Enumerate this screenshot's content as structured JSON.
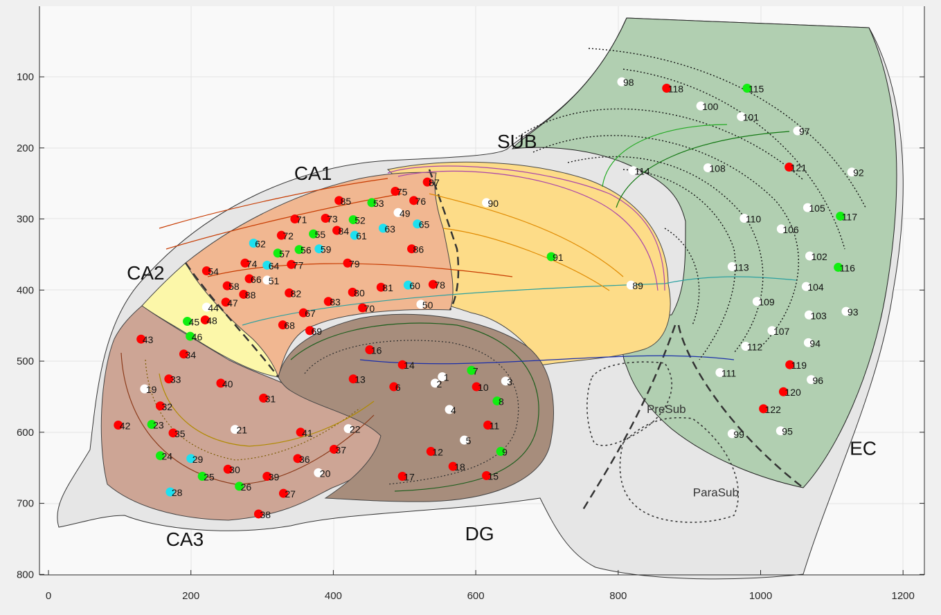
{
  "axes": {
    "x_ticks": [
      0,
      200,
      400,
      600,
      800,
      1000,
      1200
    ],
    "y_ticks": [
      100,
      200,
      300,
      400,
      500,
      600,
      700,
      800
    ],
    "x_range": [
      -12,
      1232
    ],
    "y_range": [
      10,
      810
    ]
  },
  "regions": [
    {
      "key": "ca1",
      "label": "CA1",
      "x": 345,
      "y": 245
    },
    {
      "key": "ca2",
      "label": "CA2",
      "x": 110,
      "y": 385
    },
    {
      "key": "ca3",
      "label": "CA3",
      "x": 165,
      "y": 760
    },
    {
      "key": "sub",
      "label": "SUB",
      "x": 630,
      "y": 200
    },
    {
      "key": "dg",
      "label": "DG",
      "x": 585,
      "y": 752
    },
    {
      "key": "ec",
      "label": "EC",
      "x": 1125,
      "y": 632
    },
    {
      "key": "presub",
      "label": "PreSub",
      "x": 840,
      "y": 573,
      "small": true
    },
    {
      "key": "parasub",
      "label": "ParaSub",
      "x": 905,
      "y": 690,
      "small": true
    }
  ],
  "colors": {
    "red": "#ff0000",
    "green": "#11ee11",
    "cyan": "#1ee0f0",
    "white": "#ffffff"
  },
  "points": [
    {
      "id": "1",
      "x": 553,
      "y": 522,
      "c": "white"
    },
    {
      "id": "2",
      "x": 543,
      "y": 531,
      "c": "white"
    },
    {
      "id": "3",
      "x": 642,
      "y": 528,
      "c": "white"
    },
    {
      "id": "4",
      "x": 563,
      "y": 568,
      "c": "white"
    },
    {
      "id": "5",
      "x": 584,
      "y": 611,
      "c": "white"
    },
    {
      "id": "6",
      "x": 485,
      "y": 536,
      "c": "red"
    },
    {
      "id": "7",
      "x": 594,
      "y": 513,
      "c": "green"
    },
    {
      "id": "8",
      "x": 630,
      "y": 556,
      "c": "green"
    },
    {
      "id": "9",
      "x": 635,
      "y": 627,
      "c": "green"
    },
    {
      "id": "10",
      "x": 601,
      "y": 536,
      "c": "red"
    },
    {
      "id": "11",
      "x": 617,
      "y": 590,
      "c": "red"
    },
    {
      "id": "12",
      "x": 537,
      "y": 627,
      "c": "red"
    },
    {
      "id": "13",
      "x": 428,
      "y": 525,
      "c": "red"
    },
    {
      "id": "14",
      "x": 497,
      "y": 505,
      "c": "red"
    },
    {
      "id": "15",
      "x": 615,
      "y": 661,
      "c": "red"
    },
    {
      "id": "16",
      "x": 451,
      "y": 484,
      "c": "red"
    },
    {
      "id": "17",
      "x": 497,
      "y": 662,
      "c": "red"
    },
    {
      "id": "18",
      "x": 568,
      "y": 648,
      "c": "red"
    },
    {
      "id": "19",
      "x": 135,
      "y": 539,
      "c": "white"
    },
    {
      "id": "20",
      "x": 379,
      "y": 657,
      "c": "white"
    },
    {
      "id": "21",
      "x": 262,
      "y": 596,
      "c": "white"
    },
    {
      "id": "22",
      "x": 421,
      "y": 595,
      "c": "white"
    },
    {
      "id": "23",
      "x": 145,
      "y": 589,
      "c": "green"
    },
    {
      "id": "24",
      "x": 157,
      "y": 633,
      "c": "green"
    },
    {
      "id": "25",
      "x": 216,
      "y": 662,
      "c": "green"
    },
    {
      "id": "26",
      "x": 268,
      "y": 676,
      "c": "green"
    },
    {
      "id": "27",
      "x": 330,
      "y": 686,
      "c": "red"
    },
    {
      "id": "28",
      "x": 171,
      "y": 684,
      "c": "cyan"
    },
    {
      "id": "29",
      "x": 200,
      "y": 637,
      "c": "cyan"
    },
    {
      "id": "30",
      "x": 252,
      "y": 652,
      "c": "red"
    },
    {
      "id": "31",
      "x": 302,
      "y": 552,
      "c": "red"
    },
    {
      "id": "32",
      "x": 157,
      "y": 563,
      "c": "red"
    },
    {
      "id": "33",
      "x": 169,
      "y": 525,
      "c": "red"
    },
    {
      "id": "34",
      "x": 190,
      "y": 490,
      "c": "red"
    },
    {
      "id": "35",
      "x": 175,
      "y": 601,
      "c": "red"
    },
    {
      "id": "36",
      "x": 350,
      "y": 637,
      "c": "red"
    },
    {
      "id": "37",
      "x": 401,
      "y": 624,
      "c": "red"
    },
    {
      "id": "38",
      "x": 295,
      "y": 715,
      "c": "red"
    },
    {
      "id": "39",
      "x": 307,
      "y": 662,
      "c": "red"
    },
    {
      "id": "40",
      "x": 242,
      "y": 531,
      "c": "red"
    },
    {
      "id": "41",
      "x": 354,
      "y": 600,
      "c": "red"
    },
    {
      "id": "42",
      "x": 98,
      "y": 590,
      "c": "red"
    },
    {
      "id": "43",
      "x": 130,
      "y": 469,
      "c": "red"
    },
    {
      "id": "44",
      "x": 222,
      "y": 424,
      "c": "white"
    },
    {
      "id": "45",
      "x": 195,
      "y": 444,
      "c": "green"
    },
    {
      "id": "46",
      "x": 199,
      "y": 465,
      "c": "green"
    },
    {
      "id": "47",
      "x": 249,
      "y": 417,
      "c": "red"
    },
    {
      "id": "48",
      "x": 220,
      "y": 442,
      "c": "red"
    },
    {
      "id": "49",
      "x": 491,
      "y": 291,
      "c": "white"
    },
    {
      "id": "50",
      "x": 523,
      "y": 420,
      "c": "white"
    },
    {
      "id": "51",
      "x": 307,
      "y": 386,
      "c": "white"
    },
    {
      "id": "52",
      "x": 428,
      "y": 301,
      "c": "green"
    },
    {
      "id": "53",
      "x": 454,
      "y": 277,
      "c": "green"
    },
    {
      "id": "54",
      "x": 222,
      "y": 373,
      "c": "red"
    },
    {
      "id": "55",
      "x": 372,
      "y": 321,
      "c": "green"
    },
    {
      "id": "56",
      "x": 352,
      "y": 343,
      "c": "green"
    },
    {
      "id": "57",
      "x": 322,
      "y": 348,
      "c": "green"
    },
    {
      "id": "58",
      "x": 251,
      "y": 394,
      "c": "red"
    },
    {
      "id": "59",
      "x": 380,
      "y": 342,
      "c": "cyan"
    },
    {
      "id": "60",
      "x": 505,
      "y": 393,
      "c": "cyan"
    },
    {
      "id": "61",
      "x": 430,
      "y": 323,
      "c": "cyan"
    },
    {
      "id": "62",
      "x": 288,
      "y": 334,
      "c": "cyan"
    },
    {
      "id": "63",
      "x": 470,
      "y": 313,
      "c": "cyan"
    },
    {
      "id": "64",
      "x": 307,
      "y": 365,
      "c": "cyan"
    },
    {
      "id": "65",
      "x": 518,
      "y": 307,
      "c": "cyan"
    },
    {
      "id": "66",
      "x": 282,
      "y": 384,
      "c": "red"
    },
    {
      "id": "67",
      "x": 358,
      "y": 432,
      "c": "red"
    },
    {
      "id": "68",
      "x": 329,
      "y": 449,
      "c": "red"
    },
    {
      "id": "69",
      "x": 367,
      "y": 457,
      "c": "red"
    },
    {
      "id": "70",
      "x": 441,
      "y": 425,
      "c": "red"
    },
    {
      "id": "71",
      "x": 346,
      "y": 300,
      "c": "red"
    },
    {
      "id": "72",
      "x": 327,
      "y": 323,
      "c": "red"
    },
    {
      "id": "73",
      "x": 389,
      "y": 299,
      "c": "red"
    },
    {
      "id": "74",
      "x": 276,
      "y": 362,
      "c": "red"
    },
    {
      "id": "75",
      "x": 487,
      "y": 261,
      "c": "red"
    },
    {
      "id": "76",
      "x": 513,
      "y": 274,
      "c": "red"
    },
    {
      "id": "77",
      "x": 341,
      "y": 364,
      "c": "red"
    },
    {
      "id": "78",
      "x": 540,
      "y": 392,
      "c": "red"
    },
    {
      "id": "79",
      "x": 420,
      "y": 362,
      "c": "red"
    },
    {
      "id": "80",
      "x": 427,
      "y": 403,
      "c": "red"
    },
    {
      "id": "81",
      "x": 467,
      "y": 396,
      "c": "red"
    },
    {
      "id": "82",
      "x": 338,
      "y": 404,
      "c": "red"
    },
    {
      "id": "83",
      "x": 393,
      "y": 416,
      "c": "red"
    },
    {
      "id": "84",
      "x": 405,
      "y": 316,
      "c": "red"
    },
    {
      "id": "85",
      "x": 408,
      "y": 274,
      "c": "red"
    },
    {
      "id": "86",
      "x": 510,
      "y": 342,
      "c": "red"
    },
    {
      "id": "87",
      "x": 532,
      "y": 248,
      "c": "red"
    },
    {
      "id": "88",
      "x": 274,
      "y": 406,
      "c": "red"
    },
    {
      "id": "89",
      "x": 818,
      "y": 393,
      "c": "white"
    },
    {
      "id": "90",
      "x": 615,
      "y": 277,
      "c": "white"
    },
    {
      "id": "91",
      "x": 706,
      "y": 353,
      "c": "green"
    },
    {
      "id": "92",
      "x": 1128,
      "y": 234,
      "c": "white"
    },
    {
      "id": "93",
      "x": 1120,
      "y": 430,
      "c": "white"
    },
    {
      "id": "94",
      "x": 1067,
      "y": 474,
      "c": "white"
    },
    {
      "id": "95",
      "x": 1028,
      "y": 598,
      "c": "white"
    },
    {
      "id": "96",
      "x": 1071,
      "y": 526,
      "c": "white"
    },
    {
      "id": "97",
      "x": 1052,
      "y": 176,
      "c": "white"
    },
    {
      "id": "98",
      "x": 805,
      "y": 107,
      "c": "white"
    },
    {
      "id": "99",
      "x": 960,
      "y": 602,
      "c": "white"
    },
    {
      "id": "100",
      "x": 916,
      "y": 141,
      "c": "white"
    },
    {
      "id": "101",
      "x": 973,
      "y": 156,
      "c": "white"
    },
    {
      "id": "102",
      "x": 1069,
      "y": 352,
      "c": "white"
    },
    {
      "id": "103",
      "x": 1068,
      "y": 435,
      "c": "white"
    },
    {
      "id": "104",
      "x": 1064,
      "y": 395,
      "c": "white"
    },
    {
      "id": "105",
      "x": 1066,
      "y": 284,
      "c": "white"
    },
    {
      "id": "106",
      "x": 1029,
      "y": 314,
      "c": "white"
    },
    {
      "id": "107",
      "x": 1016,
      "y": 457,
      "c": "white"
    },
    {
      "id": "108",
      "x": 926,
      "y": 228,
      "c": "white"
    },
    {
      "id": "109",
      "x": 995,
      "y": 416,
      "c": "white"
    },
    {
      "id": "110",
      "x": 977,
      "y": 299,
      "c": "white"
    },
    {
      "id": "111",
      "x": 943,
      "y": 516,
      "c": "white"
    },
    {
      "id": "112",
      "x": 979,
      "y": 479,
      "c": "white"
    },
    {
      "id": "113",
      "x": 960,
      "y": 367,
      "c": "white"
    },
    {
      "id": "114",
      "x": 821,
      "y": 232,
      "c": "white"
    },
    {
      "id": "115",
      "x": 981,
      "y": 116,
      "c": "green"
    },
    {
      "id": "116",
      "x": 1109,
      "y": 368,
      "c": "green"
    },
    {
      "id": "117",
      "x": 1112,
      "y": 296,
      "c": "green"
    },
    {
      "id": "118",
      "x": 868,
      "y": 116,
      "c": "red"
    },
    {
      "id": "119",
      "x": 1041,
      "y": 505,
      "c": "red"
    },
    {
      "id": "120",
      "x": 1032,
      "y": 543,
      "c": "red"
    },
    {
      "id": "121",
      "x": 1040,
      "y": 227,
      "c": "red"
    },
    {
      "id": "122",
      "x": 1004,
      "y": 567,
      "c": "red"
    }
  ]
}
